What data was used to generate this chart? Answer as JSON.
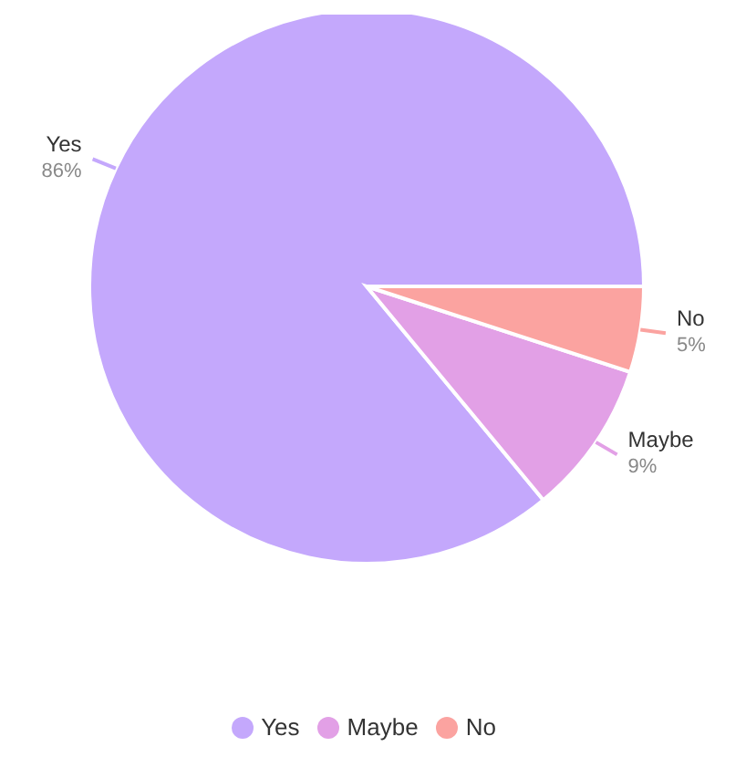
{
  "chart_data": {
    "type": "pie",
    "categories": [
      "Yes",
      "Maybe",
      "No"
    ],
    "values": [
      86,
      9,
      5
    ],
    "value_labels": [
      "86%",
      "9%",
      "5%"
    ],
    "colors": [
      "#c4a8fc",
      "#e2a0e6",
      "#fba3a0"
    ],
    "legend": "bottom"
  }
}
